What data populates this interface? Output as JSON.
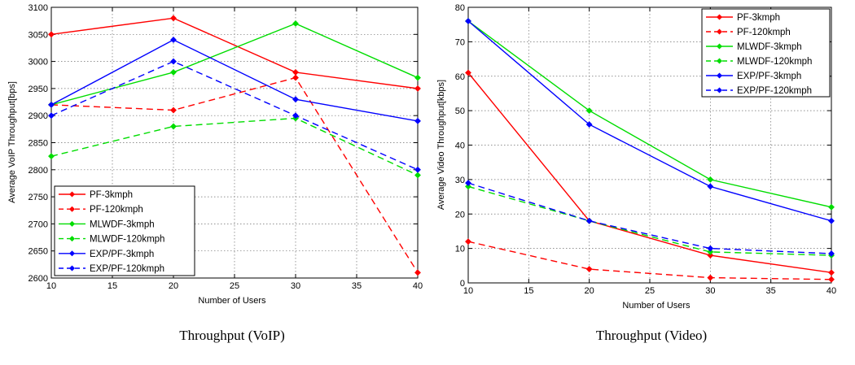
{
  "chart_data": [
    {
      "type": "line",
      "caption": "Throughput (VoIP)",
      "xlabel": "Number of Users",
      "ylabel": "Average VoIP Throughput[bps]",
      "xlim": [
        10,
        40
      ],
      "ylim": [
        2600,
        3100
      ],
      "xticks": [
        10,
        15,
        20,
        25,
        30,
        35,
        40
      ],
      "yticks": [
        2600,
        2650,
        2700,
        2750,
        2800,
        2850,
        2900,
        2950,
        3000,
        3050,
        3100
      ],
      "grid": true,
      "legend_position": "bottom-left",
      "x": [
        10,
        20,
        30,
        40
      ],
      "series": [
        {
          "name": "PF-3kmph",
          "values": [
            3050,
            3080,
            2980,
            2950
          ],
          "color": "#ff0000",
          "dashed": false
        },
        {
          "name": "PF-120kmph",
          "values": [
            2920,
            2910,
            2970,
            2610
          ],
          "color": "#ff0000",
          "dashed": true
        },
        {
          "name": "MLWDF-3kmph",
          "values": [
            2920,
            2980,
            3070,
            2970
          ],
          "color": "#00dd00",
          "dashed": false
        },
        {
          "name": "MLWDF-120kmph",
          "values": [
            2825,
            2880,
            2895,
            2790
          ],
          "color": "#00dd00",
          "dashed": true
        },
        {
          "name": "EXP/PF-3kmph",
          "values": [
            2920,
            3040,
            2930,
            2890
          ],
          "color": "#0000ff",
          "dashed": false
        },
        {
          "name": "EXP/PF-120kmph",
          "values": [
            2900,
            3000,
            2900,
            2800
          ],
          "color": "#0000ff",
          "dashed": true
        }
      ]
    },
    {
      "type": "line",
      "caption": "Throughput (Video)",
      "xlabel": "Number of Users",
      "ylabel": "Average Video Throughput[kbps]",
      "xlim": [
        10,
        40
      ],
      "ylim": [
        0,
        80
      ],
      "xticks": [
        10,
        15,
        20,
        25,
        30,
        35,
        40
      ],
      "yticks": [
        0,
        10,
        20,
        30,
        40,
        50,
        60,
        70,
        80
      ],
      "grid": true,
      "legend_position": "top-right",
      "x": [
        10,
        20,
        30,
        40
      ],
      "series": [
        {
          "name": "PF-3kmph",
          "values": [
            61,
            18,
            8,
            3
          ],
          "color": "#ff0000",
          "dashed": false
        },
        {
          "name": "PF-120kmph",
          "values": [
            12,
            4,
            1.5,
            1
          ],
          "color": "#ff0000",
          "dashed": true
        },
        {
          "name": "MLWDF-3kmph",
          "values": [
            76,
            50,
            30,
            22
          ],
          "color": "#00dd00",
          "dashed": false
        },
        {
          "name": "MLWDF-120kmph",
          "values": [
            28,
            18,
            9,
            8
          ],
          "color": "#00dd00",
          "dashed": true
        },
        {
          "name": "EXP/PF-3kmph",
          "values": [
            76,
            46,
            28,
            18
          ],
          "color": "#0000ff",
          "dashed": false
        },
        {
          "name": "EXP/PF-120kmph",
          "values": [
            29,
            18,
            10,
            8.5
          ],
          "color": "#0000ff",
          "dashed": true
        }
      ]
    }
  ]
}
